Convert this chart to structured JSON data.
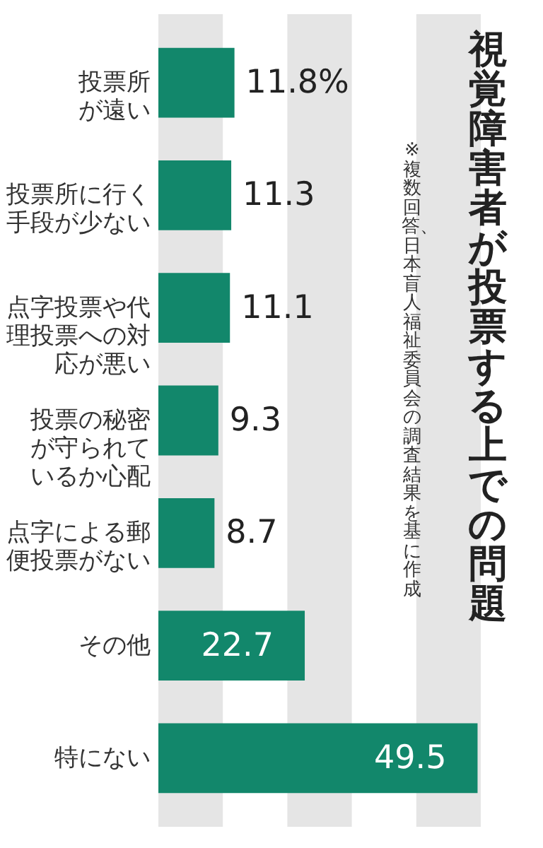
{
  "chart_data": {
    "type": "bar",
    "orientation": "horizontal",
    "title": "視覚障害者が投票する上での問題",
    "annotations": [
      "※複数回答、日本盲人福祉委員会の調査結果を基に作成"
    ],
    "categories": [
      "投票所が遠い",
      "投票所に行く手段が少ない",
      "点字投票や代理投票への対応が悪い",
      "投票の秘密が守られているか心配",
      "点字による郵便投票がない",
      "その他",
      "特にない"
    ],
    "values": [
      11.8,
      11.3,
      11.1,
      9.3,
      8.7,
      22.7,
      49.5
    ],
    "value_labels": [
      "11.8%",
      "11.3",
      "11.1",
      "9.3",
      "8.7",
      "22.7",
      "49.5"
    ],
    "color": "#12876b",
    "xlim": [
      0,
      50
    ],
    "tick_labels": "y",
    "bands": [
      {
        "axis": "x",
        "from": 0,
        "to": 10,
        "color": "#e5e5e5"
      },
      {
        "axis": "x",
        "from": 20,
        "to": 30,
        "color": "#e5e5e5"
      },
      {
        "axis": "x",
        "from": 40,
        "to": 50,
        "color": "#e5e5e5"
      }
    ]
  }
}
